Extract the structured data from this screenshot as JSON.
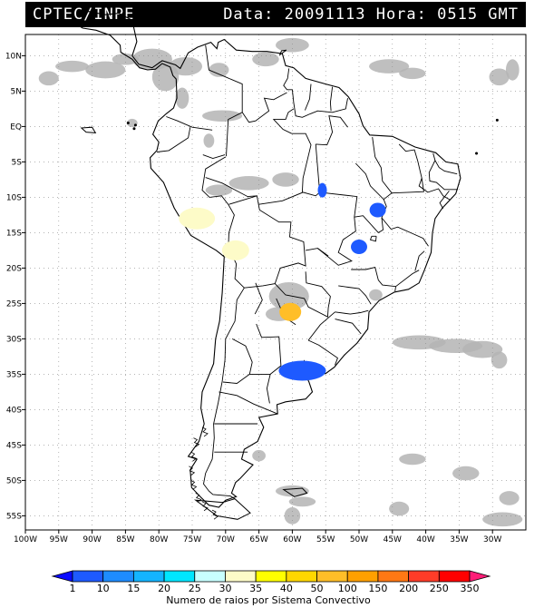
{
  "header": {
    "left_title": "CPTEC/INPE",
    "right_title": "Data: 20091113 Hora: 0515 GMT"
  },
  "map": {
    "lon_range": [
      -100,
      -25
    ],
    "lat_range": [
      -57,
      13
    ],
    "lon_ticks": [
      "100W",
      "95W",
      "90W",
      "85W",
      "80W",
      "75W",
      "70W",
      "65W",
      "60W",
      "55W",
      "50W",
      "45W",
      "40W",
      "35W",
      "30W"
    ],
    "lat_ticks": [
      "10N",
      "5N",
      "EQ",
      "5S",
      "10S",
      "15S",
      "20S",
      "25S",
      "30S",
      "35S",
      "40S",
      "45S",
      "50S",
      "55S"
    ],
    "grid": "dotted",
    "cloud_color": "#b4b4b4",
    "coast_color": "#000000",
    "convective_systems": [
      {
        "name": "system-north-para",
        "lon": -55.5,
        "lat": -9.0,
        "value": 10,
        "color": "#1e5aff"
      },
      {
        "name": "system-bahia",
        "lon": -47.2,
        "lat": -11.8,
        "value": 10,
        "color": "#1e5aff"
      },
      {
        "name": "system-minas",
        "lon": -50.0,
        "lat": -17.0,
        "value": 10,
        "color": "#1e5aff"
      },
      {
        "name": "system-peru",
        "lon": -74.3,
        "lat": -13.0,
        "value": 30,
        "color": "#fdfbc8"
      },
      {
        "name": "system-bolivia",
        "lon": -68.5,
        "lat": -17.5,
        "value": 30,
        "color": "#fdfbc8"
      },
      {
        "name": "system-paraguay",
        "lon": -60.3,
        "lat": -26.2,
        "value": 50,
        "color": "#ffbe28"
      },
      {
        "name": "system-uruguay",
        "lon": -58.5,
        "lat": -34.5,
        "value": 10,
        "color": "#1e5aff"
      }
    ]
  },
  "colorbar": {
    "caption": "Numero de raios por Sistema Convectivo",
    "labels": [
      "1",
      "10",
      "15",
      "20",
      "25",
      "30",
      "35",
      "40",
      "50",
      "100",
      "150",
      "200",
      "250",
      "350"
    ],
    "colors": [
      "#0a0aff",
      "#1e5aff",
      "#1e8cff",
      "#14b4ff",
      "#00e6ff",
      "#c8ffff",
      "#fdfbc8",
      "#ffff00",
      "#ffd700",
      "#ffbe28",
      "#ffa000",
      "#ff7814",
      "#ff3c28",
      "#ff0000",
      "#ff1e78"
    ]
  }
}
